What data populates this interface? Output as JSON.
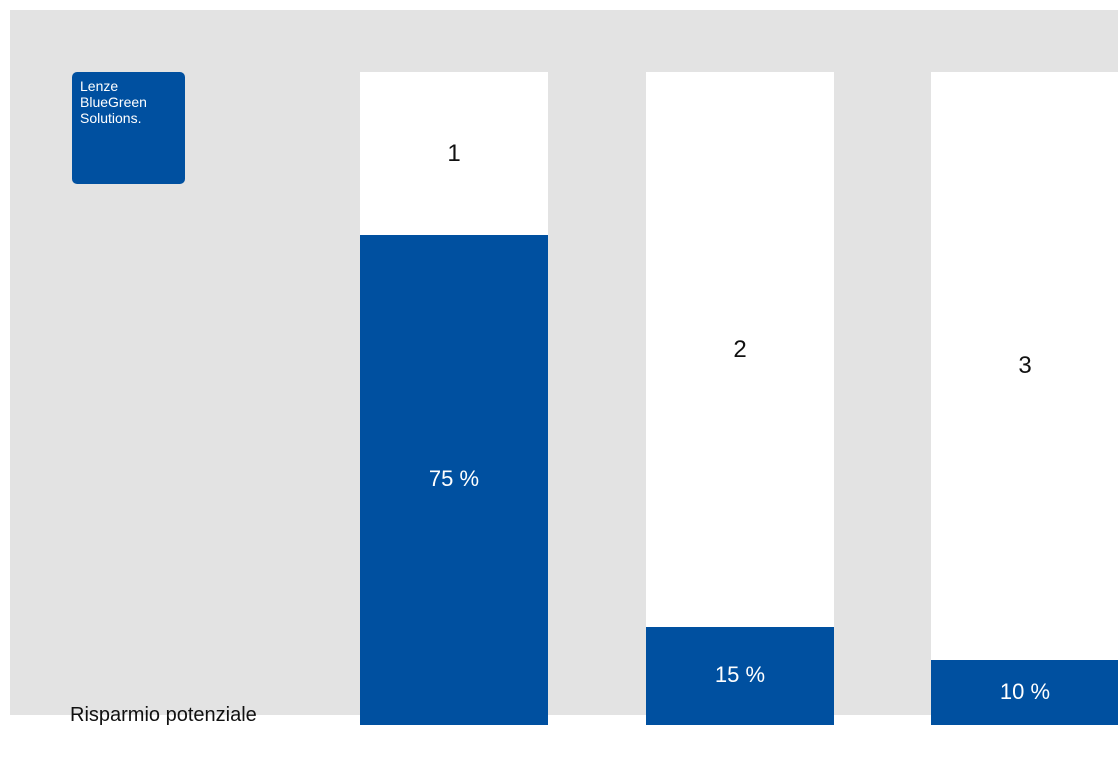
{
  "logo": {
    "line1": "Lenze",
    "line2": "BlueGreen",
    "line3": "Solutions."
  },
  "caption": "Risparmio potenziale",
  "colors": {
    "background": "#e3e3e3",
    "bar_fill": "#0050a0",
    "bar_empty": "#ffffff"
  },
  "chart_data": {
    "type": "bar",
    "categories": [
      "1",
      "2",
      "3"
    ],
    "values": [
      75,
      15,
      10
    ],
    "value_labels": [
      "75 %",
      "15 %",
      "10 %"
    ],
    "xlabel": "Risparmio potenziale",
    "ylabel": "",
    "ylim": [
      0,
      100
    ],
    "grid": false
  }
}
